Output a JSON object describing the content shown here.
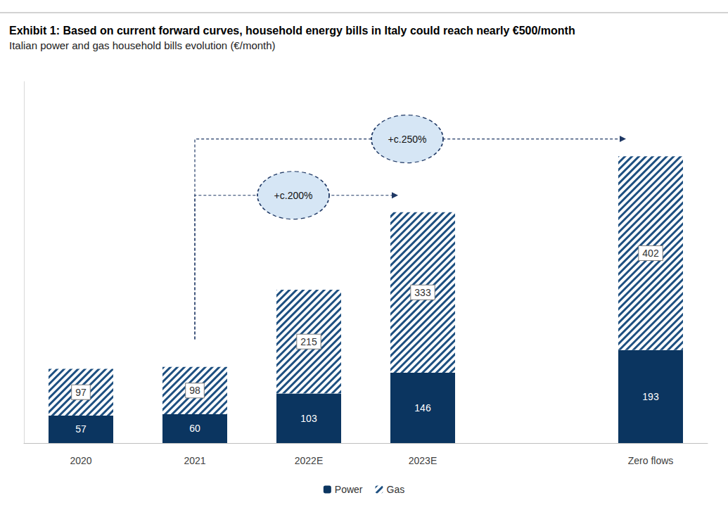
{
  "chart_data": {
    "type": "bar",
    "title": "Exhibit 1: Based on current forward curves, household energy bills in Italy could reach nearly €500/month",
    "subtitle": "Italian power and gas household bills evolution (€/month)",
    "categories": [
      "2020",
      "2021",
      "2022E",
      "2023E",
      null,
      "Zero flows"
    ],
    "series": [
      {
        "name": "Power",
        "color": "#0b3560",
        "values": [
          57,
          60,
          103,
          146,
          null,
          193
        ]
      },
      {
        "name": "Gas",
        "color": "#1d4f80",
        "values": [
          97,
          98,
          215,
          333,
          null,
          402
        ]
      }
    ],
    "totals": [
      154,
      157,
      318,
      479,
      null,
      596
    ],
    "annotations": [
      {
        "text": "+c.200%",
        "from": "2021",
        "to": "2023E"
      },
      {
        "text": "+c.250%",
        "from": "2021",
        "to": "Zero flows"
      }
    ],
    "stacked": true,
    "data_labels": true,
    "legend": "bottom",
    "grid": false,
    "tick_labels": "x",
    "ylim": [
      0,
      750
    ]
  }
}
